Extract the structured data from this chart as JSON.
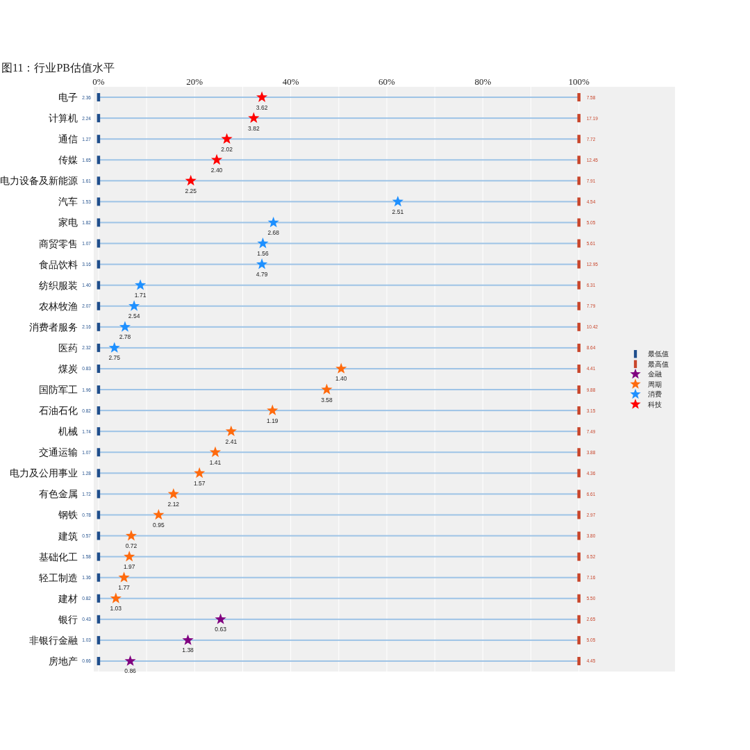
{
  "chart_data": {
    "type": "scatter",
    "title": "图11：行业PB估值水平",
    "orientation": "horizontal",
    "grid": "x",
    "legend": "right",
    "categories": [
      "电子",
      "计算机",
      "通信",
      "传媒",
      "电力设备及新能源",
      "汽车",
      "家电",
      "商贸零售",
      "食品饮料",
      "纺织服装",
      "农林牧渔",
      "消费者服务",
      "医药",
      "煤炭",
      "国防军工",
      "石油石化",
      "机械",
      "交通运输",
      "电力及公用事业",
      "有色金属",
      "钢铁",
      "建筑",
      "基础化工",
      "轻工制造",
      "建材",
      "银行",
      "非银行金融",
      "房地产"
    ],
    "xlim": [
      -1,
      120
    ],
    "xticks": [
      {
        "value": 0,
        "label": "0%"
      },
      {
        "value": 10,
        "label": null
      },
      {
        "value": 20,
        "label": "20%"
      },
      {
        "value": 30,
        "label": null
      },
      {
        "value": 40,
        "label": "40%"
      },
      {
        "value": 50,
        "label": null
      },
      {
        "value": 60,
        "label": "60%"
      },
      {
        "value": 70,
        "label": null
      },
      {
        "value": 80,
        "label": "80%"
      },
      {
        "value": 90,
        "label": null
      },
      {
        "value": 100,
        "label": "100%"
      }
    ],
    "series": [
      {
        "type": "bar",
        "color": "#9dc3e6",
        "values": [
          100,
          100,
          100,
          100,
          100,
          100,
          100,
          100,
          100,
          100,
          100,
          100,
          100,
          100,
          100,
          100,
          100,
          100,
          100,
          100,
          100,
          100,
          100,
          100,
          100,
          100,
          100,
          100
        ]
      },
      {
        "name": "最低值",
        "marker": "square",
        "color": "#1f4e8c",
        "values": [
          0,
          0,
          0,
          0,
          0,
          0,
          0,
          0,
          0,
          0,
          0,
          0,
          0,
          0,
          0,
          0,
          0,
          0,
          0,
          0,
          0,
          0,
          0,
          0,
          0,
          0,
          0,
          0
        ]
      },
      {
        "name": "最高值",
        "marker": "square",
        "color": "#c8462c",
        "values": [
          100,
          100,
          100,
          100,
          100,
          100,
          100,
          100,
          100,
          100,
          100,
          100,
          100,
          100,
          100,
          100,
          100,
          100,
          100,
          100,
          100,
          100,
          100,
          100,
          100,
          100,
          100,
          100
        ]
      },
      {
        "name": "金融",
        "marker": "star",
        "color": "#800080",
        "values": [
          null,
          null,
          null,
          null,
          null,
          null,
          null,
          null,
          null,
          null,
          null,
          null,
          null,
          null,
          null,
          null,
          null,
          null,
          null,
          null,
          null,
          null,
          null,
          null,
          null,
          25.4,
          18.6,
          6.6
        ]
      },
      {
        "name": "周期",
        "marker": "star",
        "color": "#ff6a0d",
        "values": [
          null,
          null,
          null,
          null,
          null,
          null,
          null,
          null,
          null,
          null,
          null,
          null,
          null,
          50.5,
          47.5,
          36.2,
          27.6,
          24.3,
          21.0,
          15.6,
          12.5,
          6.8,
          6.4,
          5.3,
          3.6,
          null,
          null,
          null
        ]
      },
      {
        "name": "消费",
        "marker": "star",
        "color": "#1e90ff",
        "values": [
          null,
          null,
          null,
          null,
          null,
          62.3,
          36.4,
          34.2,
          34.0,
          8.7,
          7.4,
          5.5,
          3.3,
          null,
          null,
          null,
          null,
          null,
          null,
          null,
          null,
          null,
          null,
          null,
          null,
          null,
          null,
          null
        ]
      },
      {
        "name": "科技",
        "marker": "star",
        "color": "#ff0000",
        "values": [
          34.0,
          32.3,
          26.7,
          24.6,
          19.2,
          null,
          null,
          null,
          null,
          null,
          null,
          null,
          null,
          null,
          null,
          null,
          null,
          null,
          null,
          null,
          null,
          null,
          null,
          null,
          null,
          null,
          null,
          null
        ]
      }
    ],
    "annotations": [
      {
        "text": "2.36",
        "x": 0,
        "y": "电子"
      },
      {
        "text": "7.58",
        "x": 100,
        "y": "电子"
      },
      {
        "text": "3.62",
        "x": 34.0,
        "y": "电子"
      },
      {
        "text": "2.24",
        "x": 0,
        "y": "计算机"
      },
      {
        "text": "17.19",
        "x": 100,
        "y": "计算机"
      },
      {
        "text": "3.82",
        "x": 32.3,
        "y": "计算机"
      },
      {
        "text": "1.27",
        "x": 0,
        "y": "通信"
      },
      {
        "text": "7.72",
        "x": 100,
        "y": "通信"
      },
      {
        "text": "2.02",
        "x": 26.7,
        "y": "通信"
      },
      {
        "text": "1.65",
        "x": 0,
        "y": "传媒"
      },
      {
        "text": "12.45",
        "x": 100,
        "y": "传媒"
      },
      {
        "text": "2.40",
        "x": 24.6,
        "y": "传媒"
      },
      {
        "text": "1.61",
        "x": 0,
        "y": "电力设备及新能源"
      },
      {
        "text": "7.91",
        "x": 100,
        "y": "电力设备及新能源"
      },
      {
        "text": "2.25",
        "x": 19.2,
        "y": "电力设备及新能源"
      },
      {
        "text": "1.53",
        "x": 0,
        "y": "汽车"
      },
      {
        "text": "4.54",
        "x": 100,
        "y": "汽车"
      },
      {
        "text": "2.51",
        "x": 62.3,
        "y": "汽车"
      },
      {
        "text": "1.82",
        "x": 0,
        "y": "家电"
      },
      {
        "text": "5.05",
        "x": 100,
        "y": "家电"
      },
      {
        "text": "2.68",
        "x": 36.4,
        "y": "家电"
      },
      {
        "text": "1.07",
        "x": 0,
        "y": "商贸零售"
      },
      {
        "text": "5.61",
        "x": 100,
        "y": "商贸零售"
      },
      {
        "text": "1.56",
        "x": 34.2,
        "y": "商贸零售"
      },
      {
        "text": "3.16",
        "x": 0,
        "y": "食品饮料"
      },
      {
        "text": "12.95",
        "x": 100,
        "y": "食品饮料"
      },
      {
        "text": "4.79",
        "x": 34.0,
        "y": "食品饮料"
      },
      {
        "text": "1.40",
        "x": 0,
        "y": "纺织服装"
      },
      {
        "text": "6.31",
        "x": 100,
        "y": "纺织服装"
      },
      {
        "text": "1.71",
        "x": 8.7,
        "y": "纺织服装"
      },
      {
        "text": "2.07",
        "x": 0,
        "y": "农林牧渔"
      },
      {
        "text": "7.79",
        "x": 100,
        "y": "农林牧渔"
      },
      {
        "text": "2.54",
        "x": 7.4,
        "y": "农林牧渔"
      },
      {
        "text": "2.16",
        "x": 0,
        "y": "消费者服务"
      },
      {
        "text": "10.42",
        "x": 100,
        "y": "消费者服务"
      },
      {
        "text": "2.78",
        "x": 5.5,
        "y": "消费者服务"
      },
      {
        "text": "2.32",
        "x": 0,
        "y": "医药"
      },
      {
        "text": "8.64",
        "x": 100,
        "y": "医药"
      },
      {
        "text": "2.75",
        "x": 3.3,
        "y": "医药"
      },
      {
        "text": "0.83",
        "x": 0,
        "y": "煤炭"
      },
      {
        "text": "4.41",
        "x": 100,
        "y": "煤炭"
      },
      {
        "text": "1.40",
        "x": 50.5,
        "y": "煤炭"
      },
      {
        "text": "1.96",
        "x": 0,
        "y": "国防军工"
      },
      {
        "text": "9.88",
        "x": 100,
        "y": "国防军工"
      },
      {
        "text": "3.58",
        "x": 47.5,
        "y": "国防军工"
      },
      {
        "text": "0.82",
        "x": 0,
        "y": "石油石化"
      },
      {
        "text": "3.15",
        "x": 100,
        "y": "石油石化"
      },
      {
        "text": "1.19",
        "x": 36.2,
        "y": "石油石化"
      },
      {
        "text": "1.74",
        "x": 0,
        "y": "机械"
      },
      {
        "text": "7.49",
        "x": 100,
        "y": "机械"
      },
      {
        "text": "2.41",
        "x": 27.6,
        "y": "机械"
      },
      {
        "text": "1.07",
        "x": 0,
        "y": "交通运输"
      },
      {
        "text": "3.88",
        "x": 100,
        "y": "交通运输"
      },
      {
        "text": "1.41",
        "x": 24.3,
        "y": "交通运输"
      },
      {
        "text": "1.28",
        "x": 0,
        "y": "电力及公用事业"
      },
      {
        "text": "4.36",
        "x": 100,
        "y": "电力及公用事业"
      },
      {
        "text": "1.57",
        "x": 21.0,
        "y": "电力及公用事业"
      },
      {
        "text": "1.72",
        "x": 0,
        "y": "有色金属"
      },
      {
        "text": "6.61",
        "x": 100,
        "y": "有色金属"
      },
      {
        "text": "2.12",
        "x": 15.6,
        "y": "有色金属"
      },
      {
        "text": "0.78",
        "x": 0,
        "y": "钢铁"
      },
      {
        "text": "2.97",
        "x": 100,
        "y": "钢铁"
      },
      {
        "text": "0.95",
        "x": 12.5,
        "y": "钢铁"
      },
      {
        "text": "0.57",
        "x": 0,
        "y": "建筑"
      },
      {
        "text": "3.80",
        "x": 100,
        "y": "建筑"
      },
      {
        "text": "0.72",
        "x": 6.8,
        "y": "建筑"
      },
      {
        "text": "1.58",
        "x": 0,
        "y": "基础化工"
      },
      {
        "text": "6.52",
        "x": 100,
        "y": "基础化工"
      },
      {
        "text": "1.97",
        "x": 6.4,
        "y": "基础化工"
      },
      {
        "text": "1.36",
        "x": 0,
        "y": "轻工制造"
      },
      {
        "text": "7.16",
        "x": 100,
        "y": "轻工制造"
      },
      {
        "text": "1.77",
        "x": 5.3,
        "y": "轻工制造"
      },
      {
        "text": "0.82",
        "x": 0,
        "y": "建材"
      },
      {
        "text": "5.50",
        "x": 100,
        "y": "建材"
      },
      {
        "text": "1.03",
        "x": 3.6,
        "y": "建材"
      },
      {
        "text": "0.43",
        "x": 0,
        "y": "银行"
      },
      {
        "text": "2.65",
        "x": 100,
        "y": "银行"
      },
      {
        "text": "0.63",
        "x": 25.4,
        "y": "银行"
      },
      {
        "text": "1.03",
        "x": 0,
        "y": "非银行金融"
      },
      {
        "text": "5.05",
        "x": 100,
        "y": "非银行金融"
      },
      {
        "text": "1.38",
        "x": 18.6,
        "y": "非银行金融"
      },
      {
        "text": "0.66",
        "x": 0,
        "y": "房地产"
      },
      {
        "text": "4.45",
        "x": 100,
        "y": "房地产"
      },
      {
        "text": "0.86",
        "x": 6.6,
        "y": "房地产"
      }
    ]
  }
}
